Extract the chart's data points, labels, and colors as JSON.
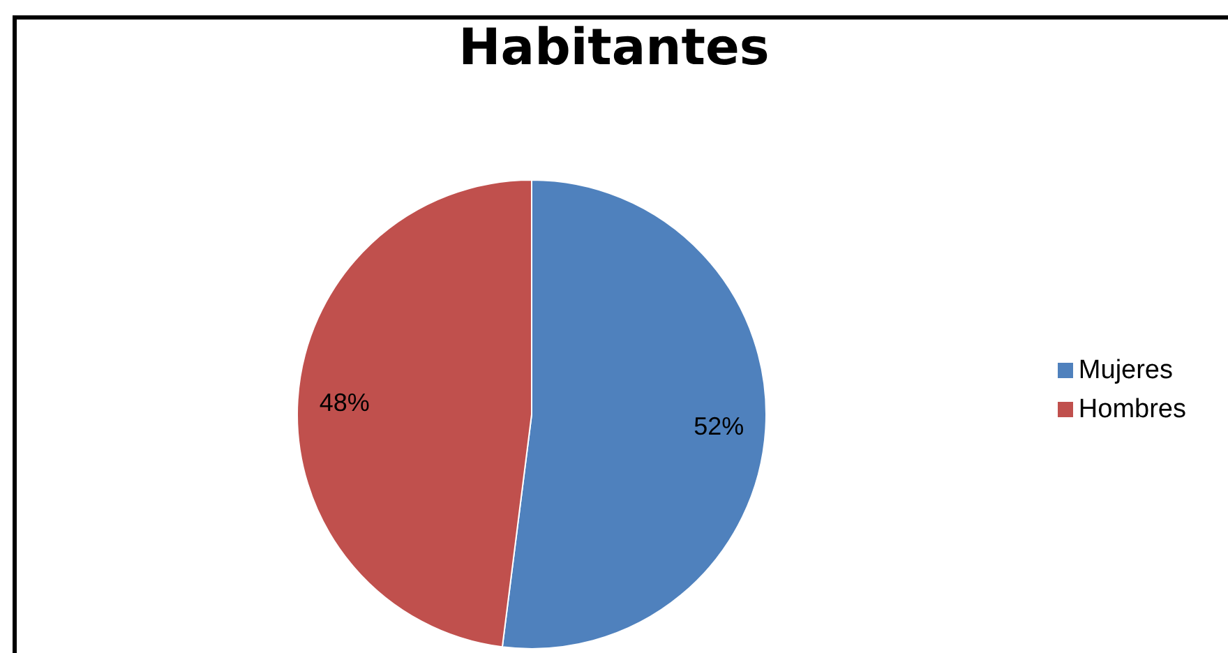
{
  "chart_data": {
    "type": "pie",
    "title": "Habitantes",
    "categories": [
      "Mujeres",
      "Hombres"
    ],
    "values": [
      52,
      48
    ],
    "colors": [
      "#4f81bd",
      "#c0504d"
    ],
    "value_labels": [
      "52%",
      "48%"
    ],
    "legend": "right"
  }
}
